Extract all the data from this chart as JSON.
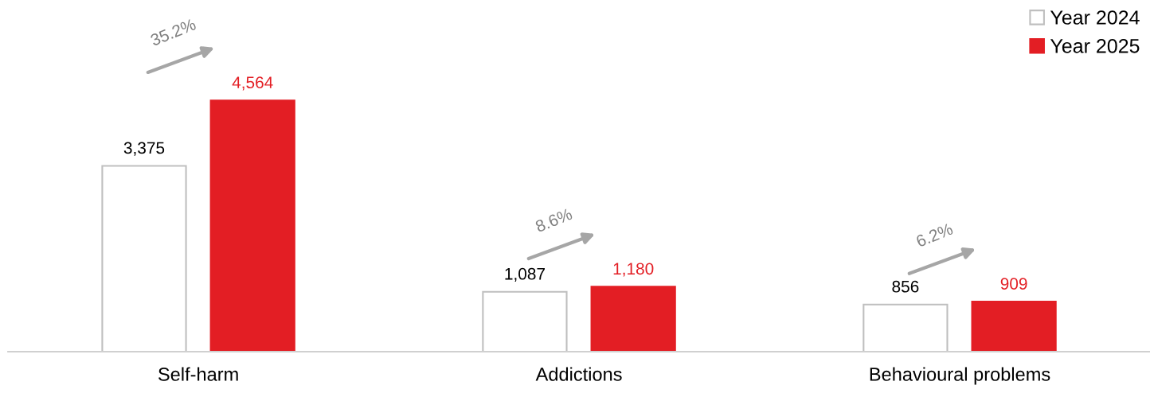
{
  "chart_data": {
    "type": "bar",
    "categories": [
      "Self-harm",
      "Addictions",
      "Behavioural problems"
    ],
    "series": [
      {
        "name": "Year 2024",
        "color": "#ffffff",
        "values": [
          3375,
          1087,
          856
        ],
        "value_labels": [
          "3,375",
          "1,087",
          "856"
        ]
      },
      {
        "name": "Year 2025",
        "color": "#e31e24",
        "values": [
          4564,
          1180,
          909
        ],
        "value_labels": [
          "4,564",
          "1,180",
          "909"
        ]
      }
    ],
    "legend": "top right",
    "grid": false,
    "annotations": [
      "35.2%",
      "8.6%",
      "6.2%"
    ]
  }
}
